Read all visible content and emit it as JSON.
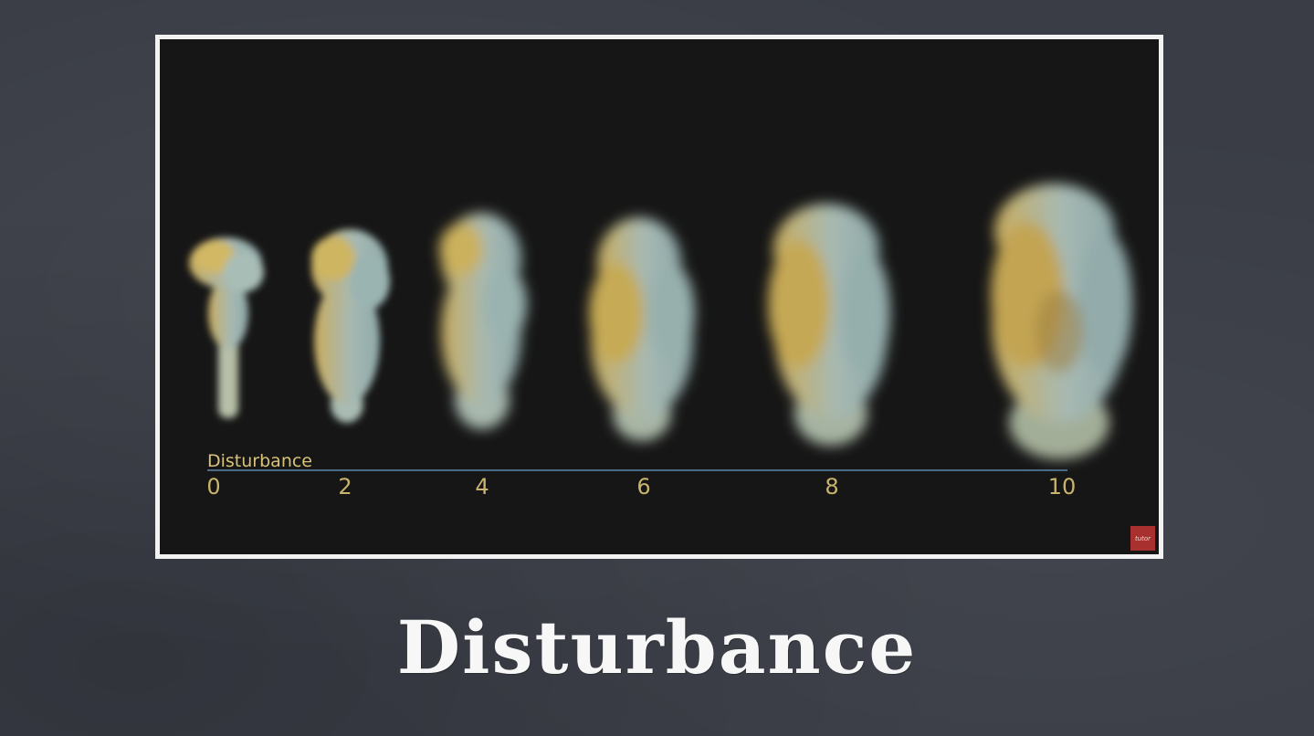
{
  "slide": {
    "caption": "Disturbance"
  },
  "image": {
    "axis_label": "Disturbance",
    "ticks": [
      "0",
      "2",
      "4",
      "6",
      "8",
      "10"
    ],
    "badge": "tutor"
  },
  "colors": {
    "background": "#3a3d46",
    "frame_border": "#f2f2f2",
    "image_background": "#161616",
    "smoke_blue": "#9fb7b4",
    "smoke_yellow": "#c4a85a",
    "axis_text": "#c8b46c",
    "axis_line": "#4a6a86",
    "badge": "#a8302e"
  }
}
